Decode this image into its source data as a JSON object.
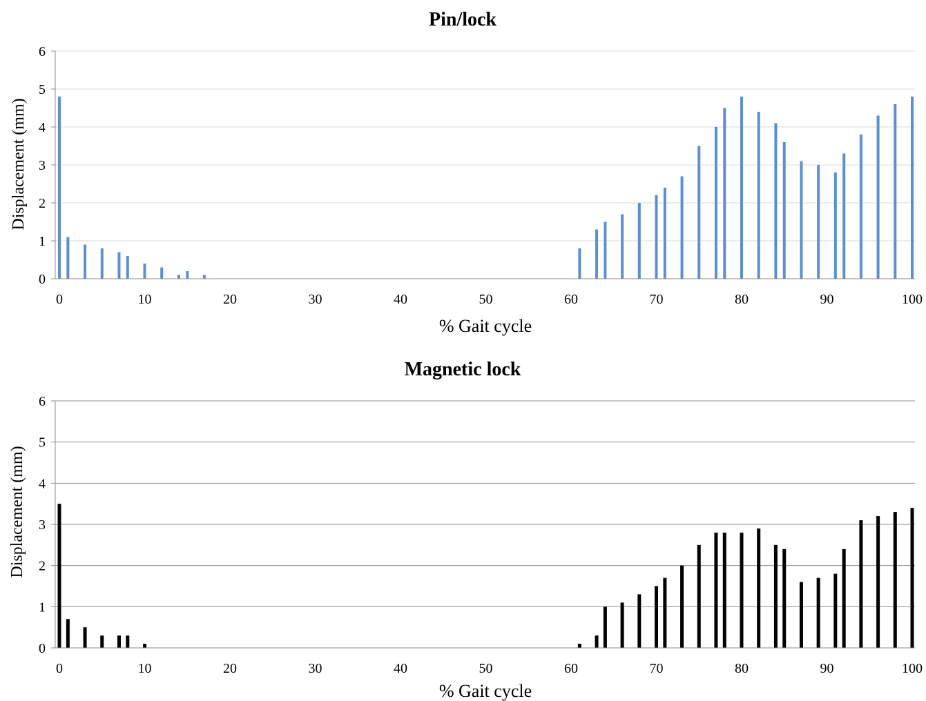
{
  "chart_data": [
    {
      "type": "bar",
      "title": "Pin/lock",
      "xlabel": "% Gait cycle",
      "ylabel": "Displacement (mm)",
      "xlim": [
        0,
        100
      ],
      "ylim": [
        0,
        6
      ],
      "xticks": [
        0,
        10,
        20,
        30,
        40,
        50,
        60,
        70,
        80,
        90,
        100
      ],
      "yticks": [
        0,
        1,
        2,
        3,
        4,
        5,
        6
      ],
      "grid": true,
      "bar_color": "#5b8fd0",
      "grid_color": "#d9d9d9",
      "x": [
        0,
        1,
        3,
        5,
        7,
        8,
        10,
        12,
        14,
        15,
        17,
        61,
        63,
        64,
        66,
        68,
        70,
        71,
        73,
        75,
        77,
        78,
        80,
        82,
        84,
        85,
        87,
        89,
        91,
        92,
        94,
        96,
        98,
        100
      ],
      "values": [
        4.8,
        1.1,
        0.9,
        0.8,
        0.7,
        0.6,
        0.4,
        0.3,
        0.1,
        0.2,
        0.1,
        0.8,
        1.3,
        1.5,
        1.7,
        2.0,
        2.2,
        2.4,
        2.7,
        3.5,
        4.0,
        4.5,
        4.8,
        4.4,
        4.1,
        3.6,
        3.1,
        3.0,
        2.8,
        3.3,
        3.8,
        4.3,
        4.6,
        4.8
      ]
    },
    {
      "type": "bar",
      "title": "Magnetic lock",
      "xlabel": "% Gait cycle",
      "ylabel": "Displacement (mm)",
      "xlim": [
        0,
        100
      ],
      "ylim": [
        0,
        6
      ],
      "xticks": [
        0,
        10,
        20,
        30,
        40,
        50,
        60,
        70,
        80,
        90,
        100
      ],
      "yticks": [
        0,
        1,
        2,
        3,
        4,
        5,
        6
      ],
      "grid": true,
      "bar_color": "#000000",
      "grid_color": "#8c8c8c",
      "x": [
        0,
        1,
        3,
        5,
        7,
        8,
        10,
        61,
        63,
        64,
        66,
        68,
        70,
        71,
        73,
        75,
        77,
        78,
        80,
        82,
        84,
        85,
        87,
        89,
        91,
        92,
        94,
        96,
        98,
        100
      ],
      "values": [
        3.5,
        0.7,
        0.5,
        0.3,
        0.3,
        0.3,
        0.1,
        0.1,
        0.3,
        1.0,
        1.1,
        1.3,
        1.5,
        1.7,
        2.0,
        2.5,
        2.8,
        2.8,
        2.8,
        2.9,
        2.5,
        2.4,
        1.6,
        1.7,
        1.8,
        2.4,
        3.1,
        3.2,
        3.3,
        3.4
      ]
    }
  ]
}
